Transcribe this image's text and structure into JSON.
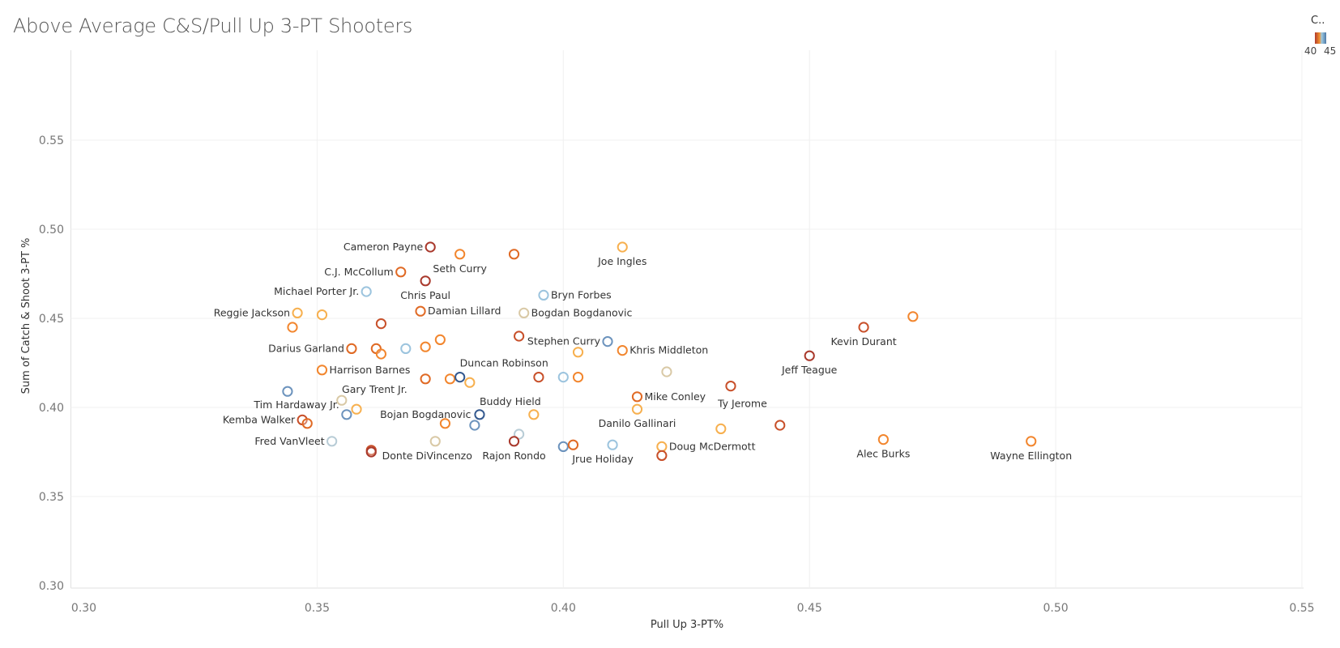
{
  "chart_data": {
    "type": "scatter",
    "title": "Above Average C&S/Pull Up 3-PT Shooters",
    "xlabel": "Pull Up 3-PT%",
    "ylabel": "Sum of Catch & Shoot 3-PT %",
    "xlim": [
      0.3,
      0.55
    ],
    "ylim": [
      0.3,
      0.59
    ],
    "xticks": [
      "0.30",
      "0.35",
      "0.40",
      "0.45",
      "0.50",
      "0.55"
    ],
    "yticks": [
      "0.30",
      "0.35",
      "0.40",
      "0.45",
      "0.50",
      "0.55"
    ],
    "grid": true,
    "legend": {
      "title": "C..",
      "values": [
        "40",
        "45"
      ],
      "placement": "top-right"
    },
    "colors": {
      "darkred": "#a9392c",
      "red": "#c8502a",
      "orangered": "#e06a25",
      "orange": "#f2862e",
      "lightorange": "#f7b04f",
      "tan": "#d9c9a6",
      "lightblue": "#9cc4de",
      "grayblue": "#b8ccd6",
      "steelblue": "#6c93bd",
      "darkblue": "#34598f"
    },
    "points": [
      {
        "x": 0.373,
        "y": 0.49,
        "c": "darkred",
        "label": "Cameron Payne",
        "pos": "left"
      },
      {
        "x": 0.379,
        "y": 0.486,
        "c": "orange",
        "label": "Seth Curry",
        "pos": "below"
      },
      {
        "x": 0.39,
        "y": 0.486,
        "c": "orangered"
      },
      {
        "x": 0.412,
        "y": 0.49,
        "c": "lightorange",
        "label": "Joe Ingles",
        "pos": "below"
      },
      {
        "x": 0.367,
        "y": 0.476,
        "c": "orangered",
        "label": "C.J. McCollum",
        "pos": "left"
      },
      {
        "x": 0.372,
        "y": 0.471,
        "c": "darkred",
        "label": "Chris Paul",
        "pos": "below"
      },
      {
        "x": 0.36,
        "y": 0.465,
        "c": "lightblue",
        "label": "Michael Porter Jr.",
        "pos": "left"
      },
      {
        "x": 0.396,
        "y": 0.463,
        "c": "lightblue",
        "label": "Bryn Forbes",
        "pos": "right"
      },
      {
        "x": 0.346,
        "y": 0.453,
        "c": "lightorange",
        "label": "Reggie Jackson",
        "pos": "left"
      },
      {
        "x": 0.351,
        "y": 0.452,
        "c": "lightorange"
      },
      {
        "x": 0.371,
        "y": 0.454,
        "c": "orangered",
        "label": "Damian Lillard",
        "pos": "right"
      },
      {
        "x": 0.392,
        "y": 0.453,
        "c": "tan",
        "label": "Bogdan Bogdanovic",
        "pos": "right"
      },
      {
        "x": 0.345,
        "y": 0.445,
        "c": "orange"
      },
      {
        "x": 0.363,
        "y": 0.447,
        "c": "red"
      },
      {
        "x": 0.461,
        "y": 0.445,
        "c": "red",
        "label": "Kevin Durant",
        "pos": "below"
      },
      {
        "x": 0.471,
        "y": 0.451,
        "c": "orange"
      },
      {
        "x": 0.391,
        "y": 0.44,
        "c": "red"
      },
      {
        "x": 0.409,
        "y": 0.437,
        "c": "steelblue",
        "label": "Stephen Curry",
        "pos": "left"
      },
      {
        "x": 0.357,
        "y": 0.433,
        "c": "orangered",
        "label": "Darius Garland",
        "pos": "left"
      },
      {
        "x": 0.362,
        "y": 0.433,
        "c": "orangered"
      },
      {
        "x": 0.363,
        "y": 0.43,
        "c": "orange"
      },
      {
        "x": 0.368,
        "y": 0.433,
        "c": "lightblue"
      },
      {
        "x": 0.372,
        "y": 0.434,
        "c": "orange"
      },
      {
        "x": 0.375,
        "y": 0.438,
        "c": "orange"
      },
      {
        "x": 0.412,
        "y": 0.432,
        "c": "orange",
        "label": "Khris Middleton",
        "pos": "right"
      },
      {
        "x": 0.403,
        "y": 0.431,
        "c": "lightorange"
      },
      {
        "x": 0.421,
        "y": 0.42,
        "c": "tan"
      },
      {
        "x": 0.351,
        "y": 0.421,
        "c": "orange",
        "label": "Harrison Barnes",
        "pos": "right"
      },
      {
        "x": 0.372,
        "y": 0.416,
        "c": "orangered"
      },
      {
        "x": 0.377,
        "y": 0.416,
        "c": "orange"
      },
      {
        "x": 0.379,
        "y": 0.417,
        "c": "darkblue",
        "label": "Duncan Robinson",
        "pos": "aboveright"
      },
      {
        "x": 0.381,
        "y": 0.414,
        "c": "lightorange"
      },
      {
        "x": 0.395,
        "y": 0.417,
        "c": "red"
      },
      {
        "x": 0.4,
        "y": 0.417,
        "c": "lightblue"
      },
      {
        "x": 0.403,
        "y": 0.417,
        "c": "orange"
      },
      {
        "x": 0.45,
        "y": 0.429,
        "c": "darkred",
        "label": "Jeff Teague",
        "pos": "below"
      },
      {
        "x": 0.434,
        "y": 0.412,
        "c": "red",
        "label": "Ty Jerome",
        "pos": "below"
      },
      {
        "x": 0.344,
        "y": 0.409,
        "c": "steelblue"
      },
      {
        "x": 0.355,
        "y": 0.404,
        "c": "tan",
        "label": "Tim Hardaway Jr.",
        "pos": "belowleft"
      },
      {
        "x": 0.358,
        "y": 0.399,
        "c": "lightorange",
        "label": "Gary Trent Jr.",
        "pos": "aboveright"
      },
      {
        "x": 0.356,
        "y": 0.396,
        "c": "steelblue"
      },
      {
        "x": 0.415,
        "y": 0.406,
        "c": "orangered",
        "label": "Mike Conley",
        "pos": "right"
      },
      {
        "x": 0.415,
        "y": 0.399,
        "c": "lightorange",
        "label": "Danilo Gallinari",
        "pos": "below"
      },
      {
        "x": 0.383,
        "y": 0.396,
        "c": "darkblue",
        "label": "Buddy Hield",
        "pos": "aboveright"
      },
      {
        "x": 0.394,
        "y": 0.396,
        "c": "lightorange"
      },
      {
        "x": 0.376,
        "y": 0.391,
        "c": "orange",
        "label": "Bojan Bogdanovic",
        "pos": "aboveright2"
      },
      {
        "x": 0.382,
        "y": 0.39,
        "c": "steelblue"
      },
      {
        "x": 0.347,
        "y": 0.393,
        "c": "red",
        "label": "Kemba Walker",
        "pos": "left"
      },
      {
        "x": 0.348,
        "y": 0.391,
        "c": "orangered"
      },
      {
        "x": 0.444,
        "y": 0.39,
        "c": "red"
      },
      {
        "x": 0.432,
        "y": 0.388,
        "c": "lightorange"
      },
      {
        "x": 0.353,
        "y": 0.381,
        "c": "grayblue",
        "label": "Fred VanVleet",
        "pos": "left"
      },
      {
        "x": 0.361,
        "y": 0.376,
        "c": "red"
      },
      {
        "x": 0.361,
        "y": 0.375,
        "c": "darkred"
      },
      {
        "x": 0.374,
        "y": 0.381,
        "c": "tan",
        "label": "Donte DiVincenzo",
        "pos": "below"
      },
      {
        "x": 0.391,
        "y": 0.385,
        "c": "grayblue"
      },
      {
        "x": 0.39,
        "y": 0.381,
        "c": "darkred",
        "label": "Rajon Rondo",
        "pos": "below"
      },
      {
        "x": 0.4,
        "y": 0.378,
        "c": "steelblue"
      },
      {
        "x": 0.402,
        "y": 0.379,
        "c": "orangered"
      },
      {
        "x": 0.41,
        "y": 0.379,
        "c": "lightblue",
        "label": "Jrue Holiday",
        "pos": "belowleft2"
      },
      {
        "x": 0.42,
        "y": 0.378,
        "c": "lightorange",
        "label": "Doug McDermott",
        "pos": "right"
      },
      {
        "x": 0.42,
        "y": 0.373,
        "c": "red"
      },
      {
        "x": 0.465,
        "y": 0.382,
        "c": "orange",
        "label": "Alec Burks",
        "pos": "below"
      },
      {
        "x": 0.495,
        "y": 0.381,
        "c": "orange",
        "label": "Wayne Ellington",
        "pos": "below"
      }
    ]
  }
}
